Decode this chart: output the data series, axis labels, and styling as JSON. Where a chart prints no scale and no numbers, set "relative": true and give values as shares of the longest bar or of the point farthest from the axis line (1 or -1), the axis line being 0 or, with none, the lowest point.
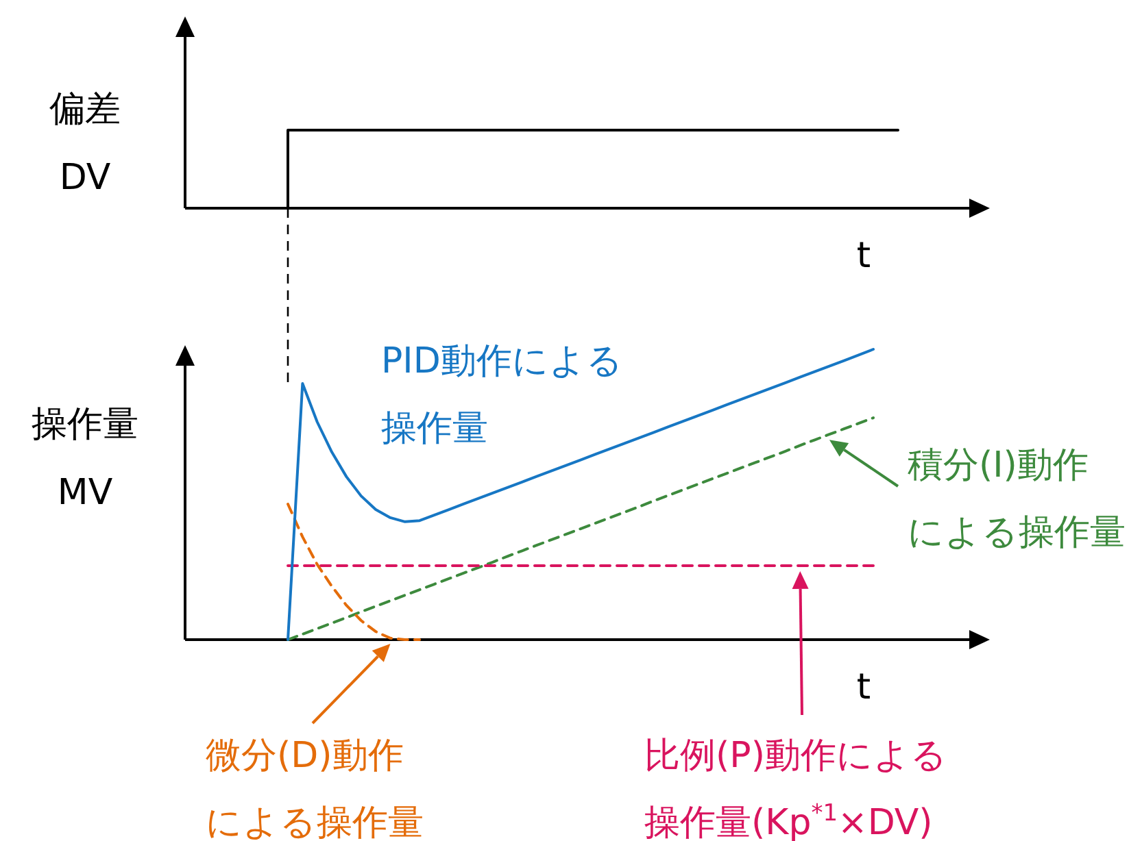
{
  "chart_data": [
    {
      "type": "step",
      "relative": true,
      "ylabel": "偏差\nDV",
      "xlabel": "t",
      "categories": [
        null,
        null,
        null,
        null,
        null,
        null,
        null,
        null,
        null,
        null,
        null,
        null,
        null,
        null,
        null,
        null,
        null,
        null,
        null,
        null,
        null
      ],
      "series": [
        {
          "color": "#000000",
          "line_style": "solid",
          "values": [
            0,
            1,
            1,
            1,
            1,
            1,
            1,
            1,
            1,
            1,
            1,
            1,
            1,
            1,
            1,
            1,
            1,
            1,
            1,
            1,
            1
          ]
        }
      ]
    },
    {
      "type": "line",
      "relative": true,
      "ylabel": "操作量\nMV",
      "xlabel": "t",
      "categories": [
        null,
        null,
        null,
        null,
        null,
        null,
        null,
        null,
        null,
        null,
        null,
        null,
        null,
        null,
        null,
        null,
        null,
        null,
        null,
        null,
        null,
        null,
        null,
        null,
        null,
        null,
        null,
        null,
        null,
        null,
        null,
        null,
        null,
        null,
        null,
        null,
        null,
        null,
        null,
        null,
        null
      ],
      "series": [
        {
          "color": "#1777c4",
          "line_style": "solid",
          "values": [
            0,
            0.882,
            0.75,
            0.646,
            0.561,
            0.495,
            0.448,
            0.42,
            0.406,
            0.41,
            0.429,
            0.448,
            0.467,
            0.486,
            0.505,
            0.524,
            0.543,
            0.562,
            0.581,
            0.6,
            0.619,
            0.638,
            0.657,
            0.676,
            0.695,
            0.714,
            0.733,
            0.752,
            0.771,
            0.79,
            0.809,
            0.828,
            0.847,
            0.866,
            0.885,
            0.904,
            0.923,
            0.942,
            0.961,
            0.98,
            1.0
          ]
        },
        {
          "color": "#e46c0a",
          "line_style": "dashed",
          "values": [
            0.467,
            0.354,
            0.259,
            0.184,
            0.118,
            0.066,
            0.028,
            0.005,
            0,
            0,
            null,
            null,
            null,
            null,
            null,
            null,
            null,
            null,
            null,
            null,
            null,
            null,
            null,
            null,
            null,
            null,
            null,
            null,
            null,
            null,
            null,
            null,
            null,
            null,
            null,
            null,
            null,
            null,
            null,
            null,
            null
          ]
        },
        {
          "color": "#d9145e",
          "line_style": "dashed",
          "values": [
            0.255,
            0.255,
            0.255,
            0.255,
            0.255,
            0.255,
            0.255,
            0.255,
            0.255,
            0.255,
            0.255,
            0.255,
            0.255,
            0.255,
            0.255,
            0.255,
            0.255,
            0.255,
            0.255,
            0.255,
            0.255,
            0.255,
            0.255,
            0.255,
            0.255,
            0.255,
            0.255,
            0.255,
            0.255,
            0.255,
            0.255,
            0.255,
            0.255,
            0.255,
            0.255,
            0.255,
            0.255,
            0.255,
            0.255,
            0.255,
            0.255
          ]
        },
        {
          "color": "#3d8a3d",
          "line_style": "dashed",
          "values": [
            0,
            0.019,
            0.038,
            0.057,
            0.076,
            0.096,
            0.115,
            0.134,
            0.153,
            0.172,
            0.191,
            0.21,
            0.229,
            0.248,
            0.267,
            0.287,
            0.306,
            0.325,
            0.344,
            0.363,
            0.382,
            0.401,
            0.42,
            0.439,
            0.458,
            0.478,
            0.497,
            0.516,
            0.535,
            0.554,
            0.573,
            0.592,
            0.611,
            0.63,
            0.649,
            0.669,
            0.688,
            0.707,
            0.726,
            0.745,
            0.764
          ]
        }
      ],
      "annotations": [
        "PID動作による操作量",
        "微分(D)動作による操作量",
        "比例(P)動作による操作量(Kp$^{*1}$×DV)",
        "積分(I)動作による操作量"
      ]
    }
  ]
}
